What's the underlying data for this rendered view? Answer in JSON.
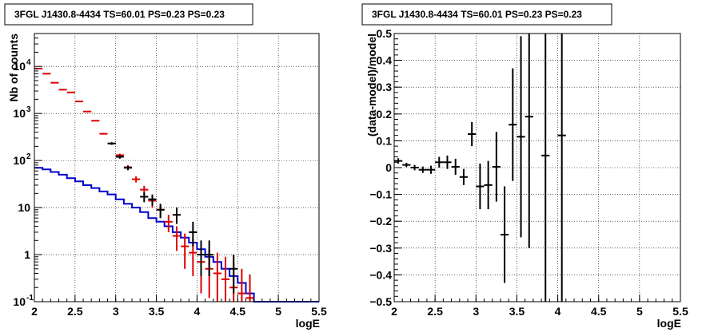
{
  "chart_data": [
    {
      "type": "line",
      "title": "3FGL J1430.8-4434 TS=60.01 PS=0.23 PS=0.23",
      "xlabel": "logE",
      "ylabel": "Nb of counts",
      "xlim": [
        2,
        5.5
      ],
      "ylim": [
        0.1,
        50000
      ],
      "yscale": "log",
      "grid": true,
      "x_ticks": [
        "2",
        "2.5",
        "3",
        "3.5",
        "4",
        "4.5",
        "5",
        "5.5"
      ],
      "y_ticks": [
        {
          "value": 0.1,
          "base": "10",
          "exp": "-1"
        },
        {
          "value": 1,
          "base": "1",
          "exp": ""
        },
        {
          "value": 10,
          "base": "10",
          "exp": ""
        },
        {
          "value": 100,
          "base": "10",
          "exp": "2"
        },
        {
          "value": 1000,
          "base": "10",
          "exp": "3"
        },
        {
          "value": 10000,
          "base": "10",
          "exp": "4"
        }
      ],
      "bin_width": 0.1,
      "colors": {
        "data": "#000000",
        "model": "#dd0000",
        "source": "#0000cc"
      },
      "series": [
        {
          "role": "data",
          "points": [
            {
              "x": 2.95,
              "y": 230,
              "ylo": 215,
              "yhi": 245
            },
            {
              "x": 3.05,
              "y": 120,
              "ylo": 109,
              "yhi": 131
            },
            {
              "x": 3.15,
              "y": 70,
              "ylo": 62,
              "yhi": 78
            },
            {
              "x": 3.35,
              "y": 17,
              "ylo": 13,
              "yhi": 21
            },
            {
              "x": 3.45,
              "y": 15,
              "ylo": 11,
              "yhi": 19
            },
            {
              "x": 3.55,
              "y": 9,
              "ylo": 6,
              "yhi": 12
            },
            {
              "x": 3.75,
              "y": 7,
              "ylo": 4.5,
              "yhi": 10
            },
            {
              "x": 3.95,
              "y": 3,
              "ylo": 1.5,
              "yhi": 5
            },
            {
              "x": 4.05,
              "y": 1,
              "ylo": 0.35,
              "yhi": 2
            },
            {
              "x": 4.15,
              "y": 1,
              "ylo": 0.35,
              "yhi": 2
            },
            {
              "x": 4.45,
              "y": 0.5,
              "ylo": 0.15,
              "yhi": 1
            }
          ]
        },
        {
          "role": "model",
          "points": [
            {
              "x": 2.05,
              "y": 9000,
              "ylo": 8800,
              "yhi": 9200
            },
            {
              "x": 2.15,
              "y": 7000,
              "ylo": 6850,
              "yhi": 7150
            },
            {
              "x": 2.25,
              "y": 4500,
              "ylo": 4400,
              "yhi": 4600
            },
            {
              "x": 2.35,
              "y": 3200,
              "ylo": 3120,
              "yhi": 3280
            },
            {
              "x": 2.45,
              "y": 2800,
              "ylo": 2730,
              "yhi": 2870
            },
            {
              "x": 2.55,
              "y": 1800,
              "ylo": 1750,
              "yhi": 1850
            },
            {
              "x": 2.65,
              "y": 1100,
              "ylo": 1070,
              "yhi": 1130
            },
            {
              "x": 2.75,
              "y": 700,
              "ylo": 680,
              "yhi": 720
            },
            {
              "x": 2.85,
              "y": 370,
              "ylo": 355,
              "yhi": 385
            },
            {
              "x": 2.95,
              "y": 230,
              "ylo": 218,
              "yhi": 242
            },
            {
              "x": 3.05,
              "y": 130,
              "ylo": 120,
              "yhi": 140
            },
            {
              "x": 3.15,
              "y": 72,
              "ylo": 65,
              "yhi": 79
            },
            {
              "x": 3.25,
              "y": 40,
              "ylo": 34,
              "yhi": 46
            },
            {
              "x": 3.35,
              "y": 24,
              "ylo": 19,
              "yhi": 29
            },
            {
              "x": 3.45,
              "y": 14,
              "ylo": 10,
              "yhi": 18
            },
            {
              "x": 3.55,
              "y": 9,
              "ylo": 6,
              "yhi": 12
            },
            {
              "x": 3.65,
              "y": 5,
              "ylo": 3,
              "yhi": 7
            },
            {
              "x": 3.75,
              "y": 2.5,
              "ylo": 1.2,
              "yhi": 4
            },
            {
              "x": 3.85,
              "y": 1.5,
              "ylo": 0.5,
              "yhi": 2.8
            },
            {
              "x": 3.95,
              "y": 1.1,
              "ylo": 0.35,
              "yhi": 2.2
            },
            {
              "x": 4.05,
              "y": 0.7,
              "ylo": 0.15,
              "yhi": 1.6
            },
            {
              "x": 4.15,
              "y": 0.5,
              "ylo": 0.12,
              "yhi": 1.3
            },
            {
              "x": 4.25,
              "y": 0.4,
              "ylo": 0.1,
              "yhi": 1.1
            },
            {
              "x": 4.35,
              "y": 0.3,
              "ylo": 0.1,
              "yhi": 0.9
            },
            {
              "x": 4.45,
              "y": 0.2,
              "ylo": 0.1,
              "yhi": 0.7
            },
            {
              "x": 4.55,
              "y": 0.15,
              "ylo": 0.1,
              "yhi": 0.5
            },
            {
              "x": 4.65,
              "y": 0.12,
              "ylo": 0.1,
              "yhi": 0.38
            }
          ]
        },
        {
          "role": "source",
          "edges": [
            2.0,
            2.1,
            2.2,
            2.3,
            2.4,
            2.5,
            2.6,
            2.7,
            2.8,
            2.9,
            3.0,
            3.1,
            3.2,
            3.3,
            3.4,
            3.5,
            3.6,
            3.7,
            3.8,
            3.9,
            4.0,
            4.1,
            4.2,
            4.3,
            4.4,
            4.5,
            4.6,
            4.7,
            5.5
          ],
          "values": [
            70,
            65,
            57,
            50,
            42,
            36,
            30,
            26,
            22,
            19,
            15,
            12,
            10,
            8,
            6,
            5,
            4,
            3,
            2.3,
            1.8,
            1.3,
            0.9,
            0.7,
            0.5,
            0.35,
            0.25,
            0.15,
            0.1
          ]
        }
      ]
    },
    {
      "type": "scatter",
      "title": "3FGL J1430.8-4434 TS=60.01 PS=0.23 PS=0.23",
      "xlabel": "logE",
      "ylabel": "(data-model)/model",
      "xlim": [
        2,
        5.5
      ],
      "ylim": [
        -0.5,
        0.5
      ],
      "grid": true,
      "x_ticks": [
        "2",
        "2.5",
        "3",
        "3.5",
        "4",
        "4.5",
        "5",
        "5.5"
      ],
      "y_ticks": [
        "−0.5",
        "−0.4",
        "−0.3",
        "−0.2",
        "−0.1",
        "0",
        "0.1",
        "0.2",
        "0.3",
        "0.4",
        "0.5"
      ],
      "y_tick_values": [
        -0.5,
        -0.4,
        -0.3,
        -0.2,
        -0.1,
        0,
        0.1,
        0.2,
        0.3,
        0.4,
        0.5
      ],
      "bin_width": 0.1,
      "color": "#000000",
      "points": [
        {
          "x": 2.05,
          "y": 0.025,
          "err": 0.01
        },
        {
          "x": 2.15,
          "y": 0.01,
          "err": 0.008
        },
        {
          "x": 2.25,
          "y": 0.0,
          "err": 0.01
        },
        {
          "x": 2.35,
          "y": -0.008,
          "err": 0.012
        },
        {
          "x": 2.45,
          "y": -0.008,
          "err": 0.015
        },
        {
          "x": 2.55,
          "y": 0.02,
          "err": 0.02
        },
        {
          "x": 2.65,
          "y": 0.02,
          "err": 0.025
        },
        {
          "x": 2.75,
          "y": 0.003,
          "err": 0.03
        },
        {
          "x": 2.85,
          "y": -0.035,
          "err": 0.03
        },
        {
          "x": 2.95,
          "y": 0.125,
          "err": 0.045
        },
        {
          "x": 3.05,
          "y": -0.07,
          "err": 0.085
        },
        {
          "x": 3.15,
          "y": -0.065,
          "err": 0.09
        },
        {
          "x": 3.25,
          "y": 0.003,
          "err": 0.13
        },
        {
          "x": 3.35,
          "y": -0.25,
          "err": 0.18
        },
        {
          "x": 3.45,
          "y": 0.16,
          "err": 0.21
        },
        {
          "x": 3.55,
          "y": 0.115,
          "err": 0.375
        },
        {
          "x": 3.65,
          "y": 0.19,
          "err": 0.49
        },
        {
          "x": 3.85,
          "y": 0.045,
          "err": 0.6
        },
        {
          "x": 4.05,
          "y": 0.12,
          "err": 0.65
        }
      ]
    }
  ]
}
